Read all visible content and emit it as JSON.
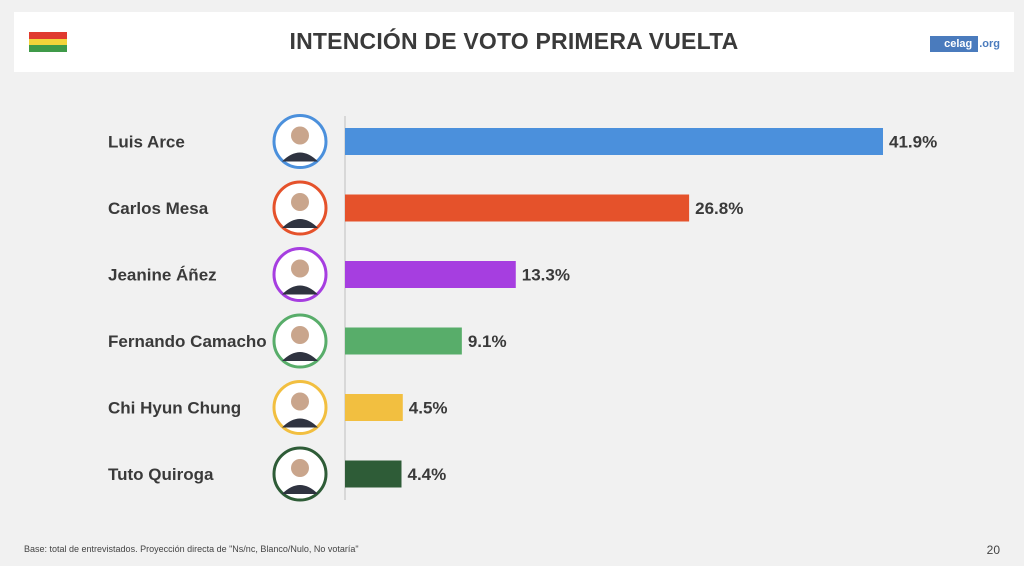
{
  "header": {
    "title": "INTENCIÓN DE VOTO PRIMERA VUELTA",
    "logo_main": "celag",
    "logo_ext": ".org",
    "flag_colors": [
      "#e03a2f",
      "#f3d43a",
      "#3f9a49"
    ]
  },
  "chart_data": {
    "type": "bar",
    "orientation": "horizontal",
    "title": "INTENCIÓN DE VOTO PRIMERA VUELTA",
    "categories": [
      "Luis Arce",
      "Carlos Mesa",
      "Jeanine Áñez",
      "Fernando Camacho",
      "Chi Hyun Chung",
      "Tuto Quiroga"
    ],
    "values": [
      41.9,
      26.8,
      13.3,
      9.1,
      4.5,
      4.4
    ],
    "value_labels": [
      "41.9%",
      "26.8%",
      "13.3%",
      "9.1%",
      "4.5%",
      "4.4%"
    ],
    "colors": [
      "#4b90dc",
      "#e5522b",
      "#a63ee0",
      "#58ad6a",
      "#f2bf40",
      "#2e5c37"
    ],
    "unit": "%",
    "xlim": [
      0,
      41.9
    ],
    "grid": false,
    "legend": "none"
  },
  "footer": {
    "note": "Base: total de entrevistados. Proyección directa de \"Ns/nc, Blanco/Nulo, No votaría\"",
    "page": "20"
  }
}
